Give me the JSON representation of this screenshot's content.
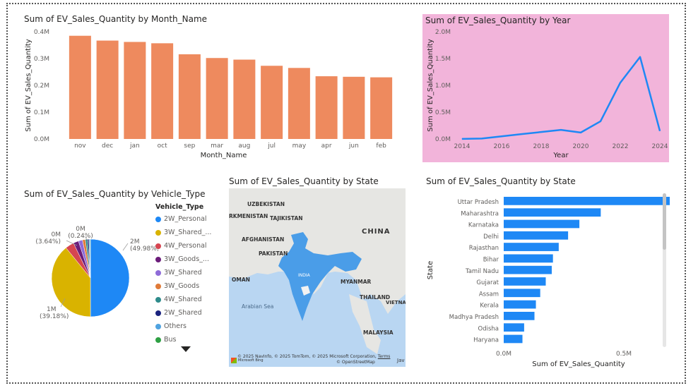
{
  "month_chart": {
    "title": "Sum of EV_Sales_Quantity by Month_Name",
    "chart_data": {
      "type": "bar",
      "categories": [
        "nov",
        "dec",
        "jan",
        "oct",
        "sep",
        "mar",
        "aug",
        "jul",
        "may",
        "apr",
        "jun",
        "feb"
      ],
      "values": [
        0.385,
        0.367,
        0.362,
        0.357,
        0.316,
        0.302,
        0.296,
        0.273,
        0.265,
        0.234,
        0.232,
        0.23
      ],
      "ylim": [
        0,
        0.4
      ],
      "yticks": [
        "0.0M",
        "0.1M",
        "0.2M",
        "0.3M",
        "0.4M"
      ],
      "xlabel": "Month_Name",
      "ylabel": "Sum of EV_Sales_Quantity",
      "color": "#EE8A5E"
    }
  },
  "year_chart": {
    "title": "Sum of EV_Sales_Quantity by Year",
    "background": "#F2B4DA",
    "chart_data": {
      "type": "line",
      "x": [
        2014,
        2015,
        2016,
        2017,
        2018,
        2019,
        2020,
        2021,
        2022,
        2023,
        2024
      ],
      "values": [
        0.002,
        0.008,
        0.05,
        0.09,
        0.13,
        0.17,
        0.12,
        0.33,
        1.05,
        1.53,
        0.15
      ],
      "ylim": [
        0,
        2.0
      ],
      "xlim": [
        2014,
        2024
      ],
      "yticks": [
        "0.0M",
        "0.5M",
        "1.0M",
        "1.5M",
        "2.0M"
      ],
      "xticks": [
        "2014",
        "2016",
        "2018",
        "2020",
        "2022",
        "2024"
      ],
      "xlabel": "Year",
      "ylabel": "Sum of EV_Sales_Quantity",
      "color": "#1E88F5"
    }
  },
  "vehicle_chart": {
    "title": "Sum of EV_Sales_Quantity by Vehicle_Type",
    "legend_title": "Vehicle_Type",
    "chart_data": {
      "type": "pie",
      "labels": [
        "2W_Personal",
        "3W_Shared_...",
        "4W_Personal",
        "3W_Goods_...",
        "3W_Shared",
        "3W_Goods",
        "4W_Shared",
        "2W_Shared",
        "Others",
        "Bus"
      ],
      "values": [
        49.98,
        39.18,
        3.64,
        2.2,
        1.7,
        1.2,
        0.9,
        0.6,
        0.36,
        0.24
      ],
      "colors": [
        "#1E88F5",
        "#D9B300",
        "#D64550",
        "#6B1C7A",
        "#8E6BD8",
        "#E07B39",
        "#2E8B8B",
        "#1A237E",
        "#4FA3E0",
        "#2EA043"
      ],
      "data_labels": [
        {
          "value": "2M",
          "pct": "(49.98%)"
        },
        {
          "value": "1M",
          "pct": "(39.18%)"
        },
        {
          "value": "0M",
          "pct": "(3.64%)"
        },
        {
          "value": "0M",
          "pct": "(0.24%)"
        }
      ]
    }
  },
  "map_chart": {
    "title": "Sum of EV_Sales_Quantity by State",
    "labels": {
      "uzbekistan": "UZBEKISTAN",
      "turkmenistan": "RKMENISTAN",
      "tajikistan": "TAJIKISTAN",
      "afghanistan": "AFGHANISTAN",
      "pakistan": "PAKISTAN",
      "china": "CHINA",
      "oman": "OMAN",
      "india": "INDIA",
      "myanmar": "MYANMAR",
      "thailand": "THAILAND",
      "vietnam": "VIETNA",
      "arabian_sea": "Arabian Sea",
      "malaysia": "MALAYSIA"
    },
    "copyright": "© 2025 NavInfo, © 2025 TomTom, © 2025 Microsoft Corporation,",
    "terms": "Terms",
    "osm": "© OpenStreetMap",
    "bing": "Microsoft Bing",
    "edge_text": "Jav"
  },
  "state_chart": {
    "title": "Sum of EV_Sales_Quantity by State",
    "chart_data": {
      "type": "bar",
      "orientation": "horizontal",
      "categories": [
        "Uttar Pradesh",
        "Maharashtra",
        "Karnataka",
        "Delhi",
        "Rajasthan",
        "Bihar",
        "Tamil Nadu",
        "Gujarat",
        "Assam",
        "Kerala",
        "Madhya Pradesh",
        "Odisha",
        "Haryana"
      ],
      "values": [
        0.732,
        0.404,
        0.315,
        0.268,
        0.229,
        0.205,
        0.2,
        0.175,
        0.152,
        0.134,
        0.128,
        0.085,
        0.078
      ],
      "xlim": [
        0,
        1.0
      ],
      "xticks": [
        "0.0M",
        "0.5M"
      ],
      "xlabel": "Sum of EV_Sales_Quantity",
      "ylabel": "State",
      "color": "#1E88F5"
    }
  }
}
